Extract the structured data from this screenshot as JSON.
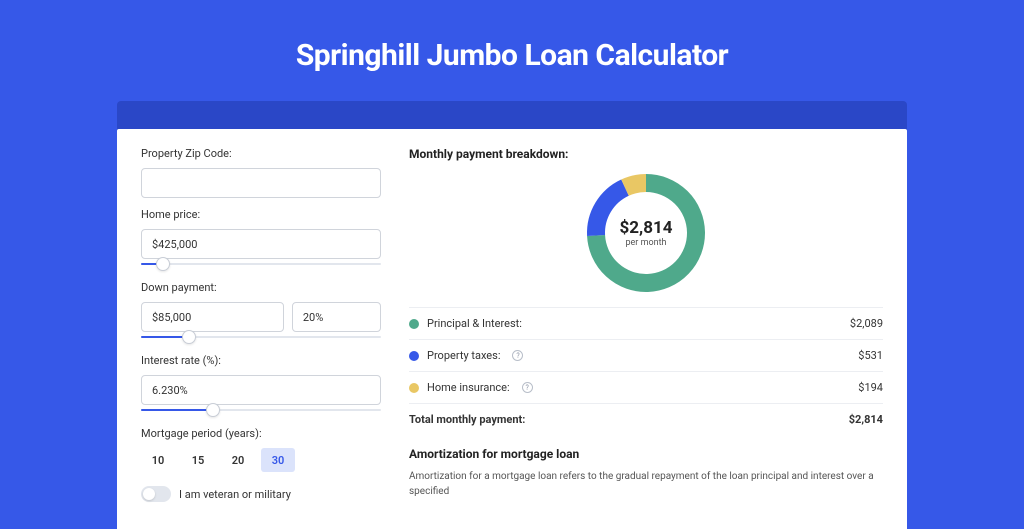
{
  "page": {
    "title": "Springhill Jumbo Loan Calculator"
  },
  "colors": {
    "page_bg": "#3658e8",
    "card_wrap_bg": "#2a47c7",
    "accent": "#3658e8",
    "principal": "#4fa98b",
    "taxes": "#3658e8",
    "insurance": "#e9c764"
  },
  "form": {
    "zip": {
      "label": "Property Zip Code:",
      "value": ""
    },
    "home_price": {
      "label": "Home price:",
      "value": "$425,000",
      "slider_pct": 9
    },
    "down_payment": {
      "label": "Down payment:",
      "amount": "$85,000",
      "percent": "20%",
      "slider_pct": 20
    },
    "interest": {
      "label": "Interest rate (%):",
      "value": "6.230%",
      "slider_pct": 30
    },
    "period": {
      "label": "Mortgage period (years):",
      "options": [
        "10",
        "15",
        "20",
        "30"
      ],
      "active": "30"
    },
    "veteran": {
      "label": "I am veteran or military",
      "on": false
    }
  },
  "breakdown": {
    "title": "Monthly payment breakdown:",
    "donut": {
      "value": "$2,814",
      "sub": "per month",
      "slices": [
        {
          "key": "principal",
          "pct": 74.2,
          "color": "#4fa98b"
        },
        {
          "key": "taxes",
          "pct": 18.9,
          "color": "#3658e8"
        },
        {
          "key": "insurance",
          "pct": 6.9,
          "color": "#e9c764"
        }
      ],
      "stroke_width": 18
    },
    "items": [
      {
        "label": "Principal & Interest:",
        "value": "$2,089",
        "color": "#4fa98b",
        "info": false
      },
      {
        "label": "Property taxes:",
        "value": "$531",
        "color": "#3658e8",
        "info": true
      },
      {
        "label": "Home insurance:",
        "value": "$194",
        "color": "#e9c764",
        "info": true
      }
    ],
    "total": {
      "label": "Total monthly payment:",
      "value": "$2,814"
    }
  },
  "amort": {
    "title": "Amortization for mortgage loan",
    "text": "Amortization for a mortgage loan refers to the gradual repayment of the loan principal and interest over a specified"
  }
}
